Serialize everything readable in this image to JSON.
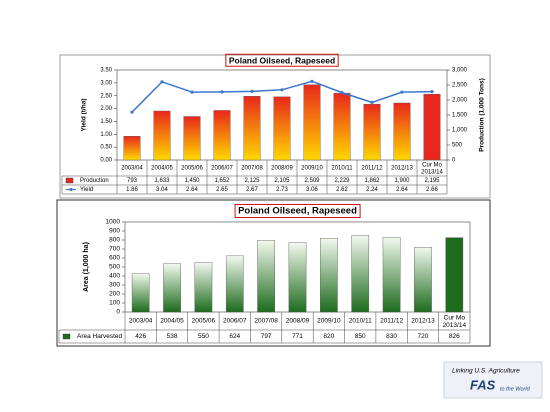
{
  "chart_data": [
    {
      "type": "combo",
      "title": "Poland Oilseed, Rapeseed",
      "ylabel": "Yield (t/ha)",
      "y2label": "Production (1,000 Tons)",
      "categories": [
        "2003/04",
        "2004/05",
        "2005/06",
        "2006/07",
        "2007/08",
        "2008/09",
        "2009/10",
        "2010/11",
        "2011/12",
        "2012/13",
        "Cur Mo 2013/14"
      ],
      "series": [
        {
          "name": "Production",
          "type": "bar",
          "axis": "y2",
          "color": "#e8281c",
          "gradient_color": "#ffd800",
          "highlight_last": true,
          "values": [
            793,
            1633,
            1450,
            1652,
            2125,
            2105,
            2509,
            2229,
            1862,
            1900,
            2195
          ],
          "value_labels": [
            "793",
            "1,633",
            "1,450",
            "1,652",
            "2,125",
            "2,105",
            "2,509",
            "2,229",
            "1,862",
            "1,900",
            "2,195"
          ]
        },
        {
          "name": "Yield",
          "type": "line",
          "axis": "y",
          "color": "#3a78d0",
          "values": [
            1.86,
            3.04,
            2.64,
            2.65,
            2.67,
            2.73,
            3.06,
            2.62,
            2.24,
            2.64,
            2.66
          ]
        }
      ],
      "ylim": [
        0,
        3.5
      ],
      "yticks": [
        {
          "value": 0,
          "label": "0.00"
        },
        {
          "value": 0.5,
          "label": "0.50"
        },
        {
          "value": 1,
          "label": "1.00"
        },
        {
          "value": 1.5,
          "label": "1.50"
        },
        {
          "value": 2,
          "label": "2.00"
        },
        {
          "value": 2.5,
          "label": "2.50"
        },
        {
          "value": 3,
          "label": "3.00"
        },
        {
          "value": 3.5,
          "label": "3.50"
        }
      ],
      "y2lim": [
        0,
        3000
      ],
      "y2ticks": [
        0,
        500,
        {
          "value": 1000,
          "label": "1,000"
        },
        {
          "value": 1500,
          "label": "1,500"
        },
        {
          "value": 2000,
          "label": "2,000"
        },
        {
          "value": 2500,
          "label": "2,500"
        },
        {
          "value": 3000,
          "label": "3,000"
        }
      ]
    },
    {
      "type": "bar",
      "title": "Poland Oilseed, Rapeseed",
      "ylabel": "Area (1,000 ha)",
      "categories": [
        "2003/04",
        "2004/05",
        "2005/06",
        "2006/07",
        "2007/08",
        "2008/09",
        "2009/10",
        "2010/11",
        "2011/12",
        "2012/13",
        "Cur Mo 2013/14"
      ],
      "series": [
        {
          "name": "Area Harvested",
          "type": "bar",
          "axis": "y",
          "color": "#1d6b1d",
          "gradient_color": "#f2f9ee",
          "highlight_last": true,
          "values": [
            426,
            538,
            550,
            624,
            797,
            771,
            820,
            850,
            830,
            720,
            826
          ]
        }
      ],
      "ylim": [
        0,
        1000
      ],
      "yticks": [
        0,
        100,
        200,
        300,
        400,
        500,
        600,
        700,
        800,
        900,
        1000
      ]
    }
  ],
  "footer": {
    "line1": "Linking U.S. Agriculture",
    "brand": "FAS",
    "line2": "to the World"
  }
}
